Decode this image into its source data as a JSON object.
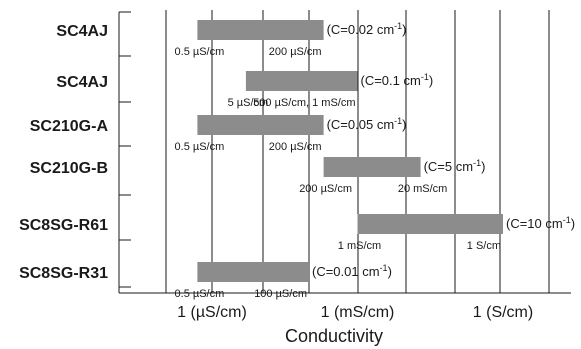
{
  "chart_data": {
    "type": "bar",
    "orientation": "horizontal-range",
    "xscale": "log",
    "xlabel": "Conductivity",
    "x_tick_labels": [
      "1 (µS/cm)",
      "1 (mS/cm)",
      "1 (S/cm)"
    ],
    "x_tick_values_uS_per_cm": [
      1,
      1000,
      1000000
    ],
    "grid": "vertical",
    "bar_color": "#8c8c8c",
    "rows": [
      {
        "category": "SC4AJ",
        "low_uS_per_cm": 0.5,
        "high_uS_per_cm": 200,
        "low_label": "0.5 µS/cm",
        "high_label": "200 µS/cm",
        "constant": "(C=0.02 cm",
        "constant_sup": "-1",
        "constant_end": ")"
      },
      {
        "category": "SC4AJ",
        "low_uS_per_cm": 5,
        "high_uS_per_cm": 1000,
        "low_label": "5 µS/cm",
        "high_label": "500 µS/cm, 1 mS/cm",
        "constant": "(C=0.1 cm",
        "constant_sup": "-1",
        "constant_end": ")"
      },
      {
        "category": "SC210G-A",
        "low_uS_per_cm": 0.5,
        "high_uS_per_cm": 200,
        "low_label": "0.5 µS/cm",
        "high_label": "200 µS/cm",
        "constant": "(C=0.05 cm",
        "constant_sup": "-1",
        "constant_end": ")"
      },
      {
        "category": "SC210G-B",
        "low_uS_per_cm": 200,
        "high_uS_per_cm": 20000,
        "low_label": "200 µS/cm",
        "high_label": "20 mS/cm",
        "constant": "(C=5 cm",
        "constant_sup": "-1",
        "constant_end": ")"
      },
      {
        "category": "SC8SG-R61",
        "low_uS_per_cm": 1000,
        "high_uS_per_cm": 1000000,
        "low_label": "1 mS/cm",
        "high_label": "1 S/cm",
        "constant": "(C=10 cm",
        "constant_sup": "-1",
        "constant_end": ")"
      },
      {
        "category": "SC8SG-R31",
        "low_uS_per_cm": 0.5,
        "high_uS_per_cm": 100,
        "low_label": "0.5 µS/cm",
        "high_label": "100 µS/cm",
        "constant": "(C=0.01 cm",
        "constant_sup": "-1",
        "constant_end": ")"
      }
    ]
  }
}
